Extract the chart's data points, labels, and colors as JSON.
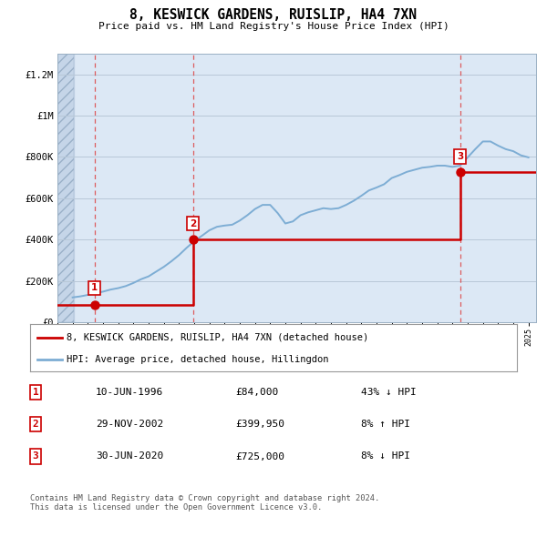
{
  "title": "8, KESWICK GARDENS, RUISLIP, HA4 7XN",
  "subtitle": "Price paid vs. HM Land Registry's House Price Index (HPI)",
  "hpi_color": "#7dadd4",
  "price_color": "#cc0000",
  "bg_color": "#dce8f5",
  "hatch_bg_color": "#c5d5e8",
  "grid_color": "#b8c8d8",
  "dashed_color": "#dd4444",
  "ylim": [
    0,
    1300000
  ],
  "yticks": [
    0,
    200000,
    400000,
    600000,
    800000,
    1000000,
    1200000
  ],
  "ytick_labels": [
    "£0",
    "£200K",
    "£400K",
    "£600K",
    "£800K",
    "£1M",
    "£1.2M"
  ],
  "sale_dates": [
    1996.44,
    2002.91,
    2020.5
  ],
  "sale_prices": [
    84000,
    399950,
    725000
  ],
  "sale_labels": [
    "1",
    "2",
    "3"
  ],
  "legend_entries": [
    "8, KESWICK GARDENS, RUISLIP, HA4 7XN (detached house)",
    "HPI: Average price, detached house, Hillingdon"
  ],
  "table_rows": [
    [
      "1",
      "10-JUN-1996",
      "£84,000",
      "43% ↓ HPI"
    ],
    [
      "2",
      "29-NOV-2002",
      "£399,950",
      "8% ↑ HPI"
    ],
    [
      "3",
      "30-JUN-2020",
      "£725,000",
      "8% ↓ HPI"
    ]
  ],
  "footer": "Contains HM Land Registry data © Crown copyright and database right 2024.\nThis data is licensed under the Open Government Licence v3.0.",
  "xmin": 1994.0,
  "xmax": 2025.5,
  "hatch_end": 1995.08
}
